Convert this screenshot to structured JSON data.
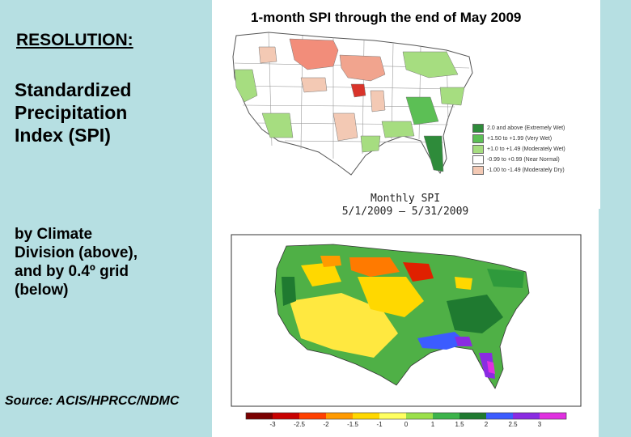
{
  "left_panel": {
    "heading": "RESOLUTION:",
    "title_lines": [
      "Standardized",
      "Precipitation",
      "Index (SPI)"
    ],
    "subtitle_lines": [
      "by Climate",
      "Division (above),",
      "and by 0.4º grid",
      "(below)"
    ],
    "source": "Source: ACIS/HPRCC/NDMC"
  },
  "top_map": {
    "title": "1-month SPI through the end of May 2009",
    "legend": [
      {
        "label": "2.0 and above (Extremely Wet)",
        "color": "#2e8b3a"
      },
      {
        "label": "+1.50 to +1.99 (Very Wet)",
        "color": "#5cbf55"
      },
      {
        "label": "+1.0 to +1.49 (Moderately Wet)",
        "color": "#a6dd80"
      },
      {
        "label": "-0.99 to +0.99 (Near Normal)",
        "color": "#ffffff"
      },
      {
        "label": "-1.00 to -1.49 (Moderately Dry)",
        "color": "#f3c9b4"
      }
    ]
  },
  "bottom_map": {
    "title": "Monthly SPI",
    "date_range": "5/1/2009 – 5/31/2009",
    "colorbar_ticks": [
      "-3",
      "-2.5",
      "-2",
      "-1.5",
      "-1",
      "0",
      "1",
      "1.5",
      "2",
      "2.5",
      "3"
    ],
    "colorbar_colors": [
      "#7a0000",
      "#c80000",
      "#ff4000",
      "#ff9a00",
      "#ffd800",
      "#ffff60",
      "#9be04a",
      "#3cb44a",
      "#1f7a30",
      "#3c5cff",
      "#8a2be2",
      "#e030e0"
    ]
  }
}
